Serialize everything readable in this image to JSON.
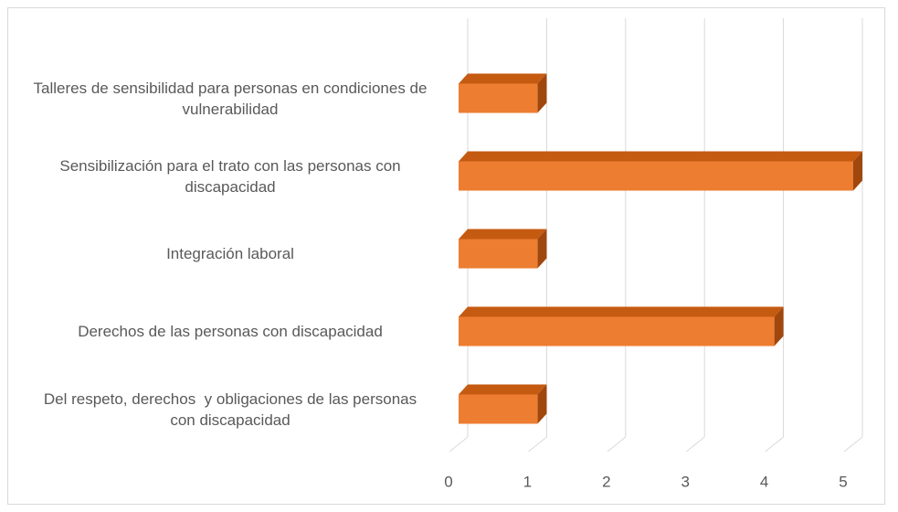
{
  "chart_data": {
    "type": "bar3d-horizontal",
    "categories": [
      "Talleres de sensibilidad para personas en condiciones de vulnerabilidad",
      "Sensibilización para el trato con las personas con discapacidad",
      "Integración laboral",
      "Derechos de las personas con discapacidad",
      "Del respeto, derechos  y obligaciones de las personas con discapacidad"
    ],
    "values": [
      1,
      5,
      1,
      4,
      1
    ],
    "color": "#ed7d31",
    "xlim": [
      0,
      5
    ],
    "xticks": [
      0,
      1,
      2,
      3,
      4,
      5
    ],
    "grid": true
  }
}
